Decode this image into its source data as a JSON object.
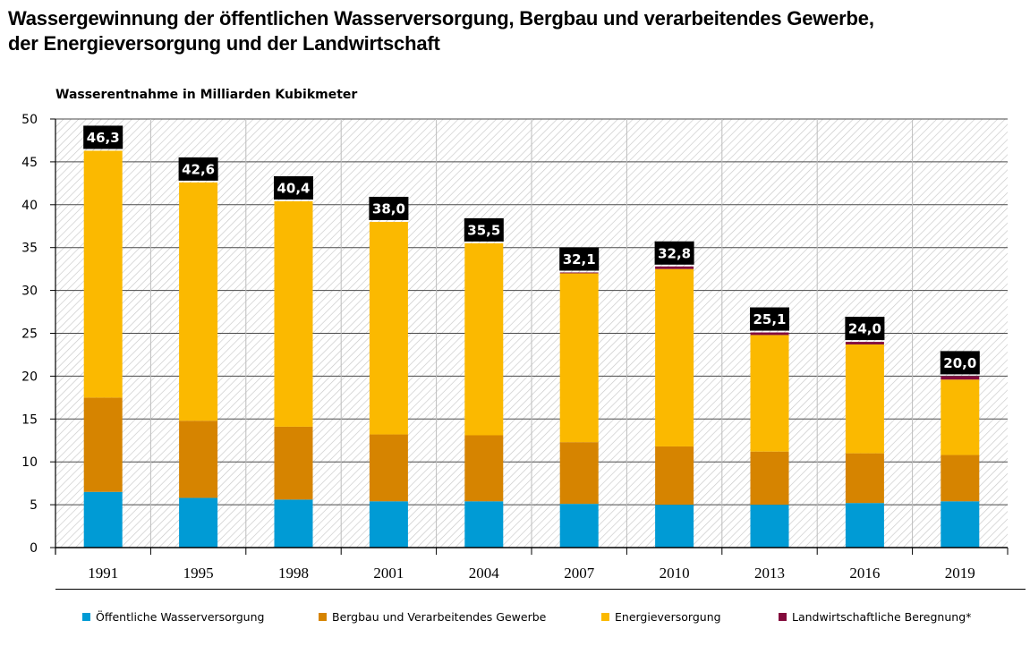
{
  "title_lines": [
    "Wassergewinnung der öffentlichen Wasserversorgung, Bergbau und verarbeitendes Gewerbe,",
    "der Energieversorgung und der Landwirtschaft"
  ],
  "colors": {
    "oeffentlich": "#009bd5",
    "bergbau": "#d68400",
    "energie": "#fbb900",
    "landwirtschaft": "#830b3c",
    "label_bg": "#000000",
    "label_text": "#ffffff"
  },
  "legend": [
    {
      "label": "Öffentliche Wasserversorgung",
      "color": "#009bd5"
    },
    {
      "label": "Bergbau und Verarbeitendes Gewerbe",
      "color": "#d68400"
    },
    {
      "label": "Energieversorgung",
      "color": "#fbb900"
    },
    {
      "label": "Landwirtschaftliche Beregnung*",
      "color": "#830b3c"
    }
  ],
  "chart_data": {
    "type": "bar",
    "stacked": true,
    "title": "Wassergewinnung der öffentlichen Wasserversorgung, Bergbau und verarbeitendes Gewerbe, der Energieversorgung und der Landwirtschaft",
    "ylabel": "Wasserentnahme in Milliarden Kubikmeter",
    "xlabel": "",
    "ylim": [
      0,
      50
    ],
    "yticks": [
      0,
      5,
      10,
      15,
      20,
      25,
      30,
      35,
      40,
      45,
      50
    ],
    "grid": true,
    "legend_position": "bottom",
    "categories": [
      "1991",
      "1995",
      "1998",
      "2001",
      "2004",
      "2007",
      "2010",
      "2013",
      "2016",
      "2019"
    ],
    "series": [
      {
        "name": "Öffentliche Wasserversorgung",
        "values": [
          6.5,
          5.8,
          5.6,
          5.4,
          5.4,
          5.1,
          5.0,
          5.0,
          5.2,
          5.4
        ]
      },
      {
        "name": "Bergbau und Verarbeitendes Gewerbe",
        "values": [
          11.0,
          9.0,
          8.5,
          7.8,
          7.7,
          7.2,
          6.8,
          6.2,
          5.8,
          5.4
        ]
      },
      {
        "name": "Energieversorgung",
        "values": [
          28.8,
          27.8,
          26.3,
          24.8,
          22.4,
          19.7,
          20.7,
          13.6,
          12.7,
          8.8
        ]
      },
      {
        "name": "Landwirtschaftliche Beregnung*",
        "values": [
          0,
          0,
          0,
          0,
          0,
          0.1,
          0.3,
          0.3,
          0.3,
          0.4
        ]
      }
    ],
    "total_labels": [
      "46,3",
      "42,6",
      "40,4",
      "38,0",
      "35,5",
      "32,1",
      "32,8",
      "25,1",
      "24,0",
      "20,0"
    ],
    "totals": [
      46.3,
      42.6,
      40.4,
      38.0,
      35.5,
      32.1,
      32.8,
      25.1,
      24.0,
      20.0
    ]
  }
}
